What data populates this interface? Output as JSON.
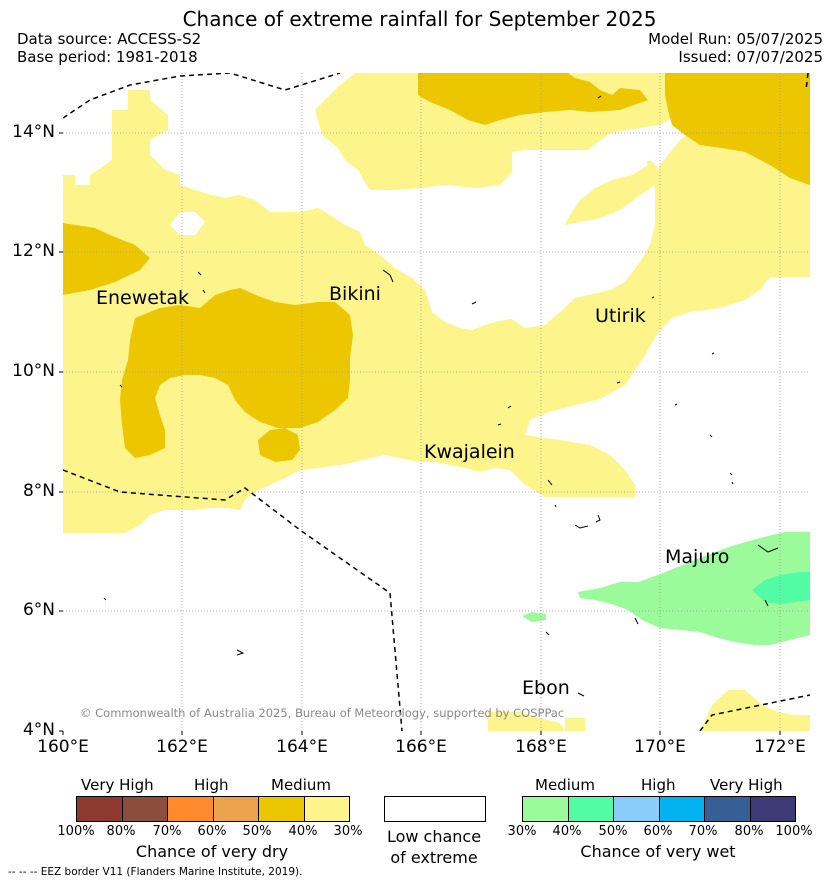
{
  "title": "Chance of extreme rainfall for September 2025",
  "meta": {
    "data_source": "Data source: ACCESS-S2",
    "base_period": "Base period: 1981-2018",
    "model_run": "Model Run: 05/07/2025",
    "issued": "Issued: 07/07/2025"
  },
  "map": {
    "lon_range": [
      160,
      172.5
    ],
    "lat_range": [
      4,
      15
    ],
    "x_ticks": [
      "160°E",
      "162°E",
      "164°E",
      "166°E",
      "168°E",
      "170°E",
      "172°E"
    ],
    "y_ticks": [
      "4°N",
      "6°N",
      "8°N",
      "10°N",
      "12°N",
      "14°N"
    ],
    "places": [
      "Enewetak",
      "Bikini",
      "Utirik",
      "Kwajalein",
      "Majuro",
      "Ebon"
    ],
    "copyright": "© Commonwealth of Australia 2025, Bureau of Meteorology, supported by COSPPac"
  },
  "legend": {
    "dry": {
      "headings": [
        "Very High",
        "High",
        "Medium"
      ],
      "pct_labels": [
        "100%",
        "80%",
        "70%",
        "60%",
        "50%",
        "40%",
        "30%"
      ],
      "colors": [
        "#8e3a30",
        "#8c4e3c",
        "#ff8a2e",
        "#eca14c",
        "#ecc600",
        "#fdf58c"
      ],
      "caption": "Chance of very dry"
    },
    "low": {
      "caption_line1": "Low chance",
      "caption_line2": "of extreme",
      "color": "#ffffff"
    },
    "wet": {
      "headings": [
        "Medium",
        "High",
        "Very High"
      ],
      "pct_labels": [
        "30%",
        "40%",
        "50%",
        "60%",
        "70%",
        "80%",
        "100%"
      ],
      "colors": [
        "#9bfb9b",
        "#52fca4",
        "#89cdfc",
        "#00b3ef",
        "#375e96",
        "#3d3a75"
      ],
      "caption": "Chance of very wet"
    }
  },
  "eez_note": "--  --  -- EEZ border V11 (Flanders Marine Institute, 2019)."
}
